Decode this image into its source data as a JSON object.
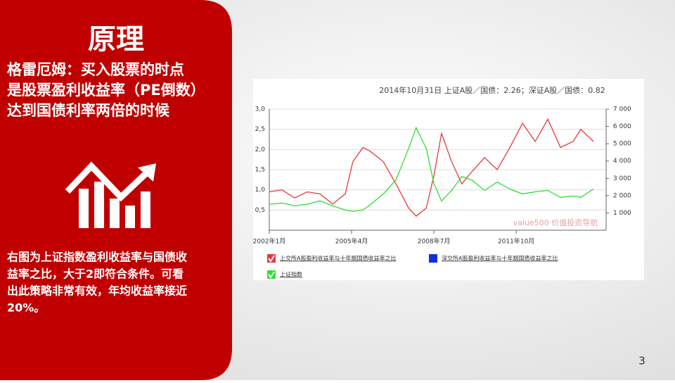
{
  "heading": "原理",
  "principle_lines": [
    "格雷厄姆：买入股票的时点",
    "是股票盈利收益率（PE倒数）",
    "达到国债利率两倍的时候"
  ],
  "description_lines": [
    "右图为上证指数盈利收益率与国债收",
    "益率之比，大于2即符合条件。可看",
    "出此策略非常有效，年均收益率接近",
    "20%。"
  ],
  "page_number": "3",
  "chart_data": {
    "type": "line",
    "title": "2014年10月31日 上证A股／国债：2.26；深证A股／国债：0.82",
    "watermark": "value500 价值投资导航",
    "x": [
      2002.0,
      2002.5,
      2003.0,
      2003.5,
      2004.0,
      2004.5,
      2005.0,
      2005.3,
      2005.7,
      2006.0,
      2006.5,
      2007.0,
      2007.5,
      2007.8,
      2008.2,
      2008.5,
      2008.8,
      2009.2,
      2009.6,
      2010.0,
      2010.5,
      2011.0,
      2011.5,
      2012.0,
      2012.5,
      2013.0,
      2013.5,
      2014.0,
      2014.3,
      2014.8
    ],
    "xlim": [
      2002.0,
      2015.3
    ],
    "xticks": [
      {
        "value": 2002.0,
        "label": "2002年1月"
      },
      {
        "value": 2005.25,
        "label": "2005年4月"
      },
      {
        "value": 2008.5,
        "label": "2008年7月"
      },
      {
        "value": 2011.75,
        "label": "2011年10月"
      }
    ],
    "ylim": [
      0,
      3.0
    ],
    "yticks": [
      {
        "value": 0.5,
        "label": "0,5"
      },
      {
        "value": 1.0,
        "label": "1,0"
      },
      {
        "value": 1.5,
        "label": "1,5"
      },
      {
        "value": 2.0,
        "label": "2,0"
      },
      {
        "value": 2.5,
        "label": "2,5"
      },
      {
        "value": 3.0,
        "label": "3,0"
      }
    ],
    "y2lim": [
      0,
      7000
    ],
    "y2ticks": [
      {
        "value": 1000,
        "label": "1 000"
      },
      {
        "value": 2000,
        "label": "2 000"
      },
      {
        "value": 3000,
        "label": "3 000"
      },
      {
        "value": 4000,
        "label": "4 000"
      },
      {
        "value": 5000,
        "label": "5 000"
      },
      {
        "value": 6000,
        "label": "6 000"
      },
      {
        "value": 7000,
        "label": "7 000"
      }
    ],
    "grid": true,
    "series": [
      {
        "name": "上交所A股盈利收益率与十年期国债收益率之比",
        "color": "#e8383d",
        "axis": "y",
        "checked": true,
        "values": [
          0.95,
          1.0,
          0.8,
          0.95,
          0.9,
          0.65,
          0.9,
          1.7,
          2.05,
          1.95,
          1.7,
          1.15,
          0.55,
          0.35,
          0.55,
          1.35,
          2.4,
          1.7,
          1.15,
          1.45,
          1.8,
          1.5,
          2.05,
          2.65,
          2.2,
          2.75,
          2.05,
          2.2,
          2.5,
          2.2
        ]
      },
      {
        "name": "深交所A股盈利收益率与十年期国债收益率之比",
        "color": "#1030e0",
        "axis": "y",
        "checked": false,
        "values": [
          null,
          null,
          null,
          null,
          null,
          null,
          null,
          null,
          null,
          null,
          null,
          null,
          null,
          null,
          null,
          null,
          null,
          null,
          null,
          null,
          null,
          null,
          null,
          null,
          null,
          null,
          null,
          null,
          null,
          null
        ]
      },
      {
        "name": "上证指数",
        "color": "#33dd33",
        "axis": "y2",
        "checked": true,
        "values": [
          1500,
          1570,
          1410,
          1500,
          1700,
          1410,
          1170,
          1090,
          1170,
          1490,
          2100,
          2900,
          4720,
          5930,
          4720,
          2700,
          1690,
          2300,
          3100,
          2900,
          2300,
          2780,
          2380,
          2100,
          2220,
          2300,
          1900,
          1980,
          1900,
          2380
        ]
      }
    ]
  }
}
